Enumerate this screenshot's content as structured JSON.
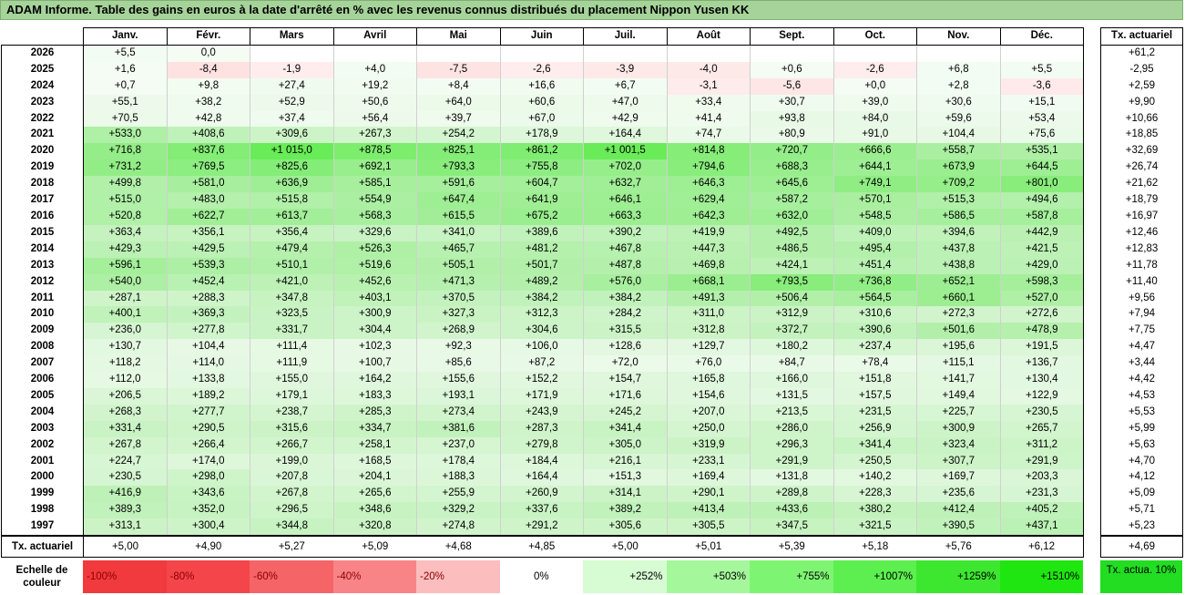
{
  "title": "ADAM Informe. Table des gains en euros à la date d'arrêté en % avec les revenus connus distribués du placement Nippon Yusen KK",
  "months": [
    "Janv.",
    "Févr.",
    "Mars",
    "Avril",
    "Mai",
    "Juin",
    "Juil.",
    "Août",
    "Sept.",
    "Oct.",
    "Nov.",
    "Déc."
  ],
  "side_header": "Tx. actuariel",
  "footer_label": "Tx. actuariel",
  "rows": [
    {
      "year": "2026",
      "v": [
        "+5,5",
        "0,0",
        "",
        "",
        "",
        "",
        "",
        "",
        "",
        "",
        "",
        ""
      ],
      "tx": "+61,2"
    },
    {
      "year": "2025",
      "v": [
        "+1,6",
        "-8,4",
        "-1,9",
        "+4,0",
        "-7,5",
        "-2,6",
        "-3,9",
        "-4,0",
        "+0,6",
        "-2,6",
        "+6,8",
        "+5,5"
      ],
      "tx": "-2,95"
    },
    {
      "year": "2024",
      "v": [
        "+0,7",
        "+9,8",
        "+27,4",
        "+19,2",
        "+8,4",
        "+16,6",
        "+6,7",
        "-3,1",
        "-5,6",
        "+0,0",
        "+2,8",
        "-3,6"
      ],
      "tx": "+2,59"
    },
    {
      "year": "2023",
      "v": [
        "+55,1",
        "+38,2",
        "+52,9",
        "+50,6",
        "+64,0",
        "+60,6",
        "+47,0",
        "+33,4",
        "+30,7",
        "+39,0",
        "+30,6",
        "+15,1"
      ],
      "tx": "+9,90"
    },
    {
      "year": "2022",
      "v": [
        "+70,5",
        "+42,8",
        "+37,4",
        "+56,4",
        "+39,7",
        "+67,0",
        "+42,9",
        "+41,4",
        "+93,8",
        "+84,0",
        "+59,6",
        "+53,4"
      ],
      "tx": "+10,66"
    },
    {
      "year": "2021",
      "v": [
        "+533,0",
        "+408,6",
        "+309,6",
        "+267,3",
        "+254,2",
        "+178,9",
        "+164,4",
        "+74,7",
        "+80,9",
        "+91,0",
        "+104,4",
        "+75,6"
      ],
      "tx": "+18,85"
    },
    {
      "year": "2020",
      "v": [
        "+716,8",
        "+837,6",
        "+1 015,0",
        "+878,5",
        "+825,1",
        "+861,2",
        "+1 001,5",
        "+814,8",
        "+720,7",
        "+666,6",
        "+558,7",
        "+535,1"
      ],
      "tx": "+32,69"
    },
    {
      "year": "2019",
      "v": [
        "+731,2",
        "+769,5",
        "+825,6",
        "+692,1",
        "+793,3",
        "+755,8",
        "+702,0",
        "+794,6",
        "+688,3",
        "+644,1",
        "+673,9",
        "+644,5"
      ],
      "tx": "+26,74"
    },
    {
      "year": "2018",
      "v": [
        "+499,8",
        "+581,0",
        "+636,9",
        "+585,1",
        "+591,6",
        "+604,7",
        "+632,7",
        "+646,3",
        "+645,6",
        "+749,1",
        "+709,2",
        "+801,0"
      ],
      "tx": "+21,62"
    },
    {
      "year": "2017",
      "v": [
        "+515,0",
        "+483,0",
        "+515,8",
        "+554,9",
        "+647,4",
        "+641,9",
        "+646,1",
        "+629,4",
        "+587,2",
        "+570,1",
        "+515,3",
        "+494,6"
      ],
      "tx": "+18,79"
    },
    {
      "year": "2016",
      "v": [
        "+520,8",
        "+622,7",
        "+613,7",
        "+568,3",
        "+615,5",
        "+675,2",
        "+663,3",
        "+642,3",
        "+632,0",
        "+548,5",
        "+586,5",
        "+587,8"
      ],
      "tx": "+16,97"
    },
    {
      "year": "2015",
      "v": [
        "+363,4",
        "+356,1",
        "+356,4",
        "+329,6",
        "+341,0",
        "+389,6",
        "+390,2",
        "+419,9",
        "+492,5",
        "+409,0",
        "+394,6",
        "+442,9"
      ],
      "tx": "+12,46"
    },
    {
      "year": "2014",
      "v": [
        "+429,3",
        "+429,5",
        "+479,4",
        "+526,3",
        "+465,7",
        "+481,2",
        "+467,8",
        "+447,3",
        "+486,5",
        "+495,4",
        "+437,8",
        "+421,5"
      ],
      "tx": "+12,83"
    },
    {
      "year": "2013",
      "v": [
        "+596,1",
        "+539,3",
        "+510,1",
        "+519,6",
        "+505,1",
        "+501,7",
        "+487,8",
        "+469,8",
        "+424,1",
        "+451,4",
        "+438,8",
        "+429,0"
      ],
      "tx": "+11,78"
    },
    {
      "year": "2012",
      "v": [
        "+540,0",
        "+452,4",
        "+421,0",
        "+452,6",
        "+471,3",
        "+489,2",
        "+576,0",
        "+668,1",
        "+793,5",
        "+736,8",
        "+652,1",
        "+598,3"
      ],
      "tx": "+11,40"
    },
    {
      "year": "2011",
      "v": [
        "+287,1",
        "+288,3",
        "+347,8",
        "+403,1",
        "+370,5",
        "+384,2",
        "+384,2",
        "+491,3",
        "+506,4",
        "+564,5",
        "+660,1",
        "+527,0"
      ],
      "tx": "+9,56"
    },
    {
      "year": "2010",
      "v": [
        "+400,1",
        "+369,3",
        "+323,5",
        "+300,9",
        "+327,3",
        "+312,3",
        "+284,2",
        "+311,0",
        "+312,9",
        "+310,6",
        "+272,3",
        "+272,6"
      ],
      "tx": "+7,94"
    },
    {
      "year": "2009",
      "v": [
        "+236,0",
        "+277,8",
        "+331,7",
        "+304,4",
        "+268,9",
        "+304,6",
        "+315,5",
        "+312,8",
        "+372,7",
        "+390,6",
        "+501,6",
        "+478,9"
      ],
      "tx": "+7,75"
    },
    {
      "year": "2008",
      "v": [
        "+130,7",
        "+104,4",
        "+111,4",
        "+102,3",
        "+92,3",
        "+106,0",
        "+128,6",
        "+129,7",
        "+180,2",
        "+237,4",
        "+195,6",
        "+191,5"
      ],
      "tx": "+4,47"
    },
    {
      "year": "2007",
      "v": [
        "+118,2",
        "+114,0",
        "+111,9",
        "+100,7",
        "+85,6",
        "+87,2",
        "+72,0",
        "+76,0",
        "+84,7",
        "+78,4",
        "+115,1",
        "+136,7"
      ],
      "tx": "+3,44"
    },
    {
      "year": "2006",
      "v": [
        "+112,0",
        "+133,8",
        "+155,0",
        "+164,2",
        "+155,6",
        "+152,2",
        "+154,7",
        "+165,8",
        "+166,0",
        "+151,8",
        "+141,7",
        "+130,4"
      ],
      "tx": "+4,42"
    },
    {
      "year": "2005",
      "v": [
        "+206,5",
        "+189,2",
        "+179,1",
        "+183,3",
        "+193,1",
        "+171,9",
        "+171,6",
        "+154,6",
        "+131,5",
        "+157,5",
        "+149,4",
        "+122,9"
      ],
      "tx": "+4,53"
    },
    {
      "year": "2004",
      "v": [
        "+268,3",
        "+277,7",
        "+238,7",
        "+285,3",
        "+273,4",
        "+243,9",
        "+245,2",
        "+207,0",
        "+213,5",
        "+231,5",
        "+225,7",
        "+230,5"
      ],
      "tx": "+5,53"
    },
    {
      "year": "2003",
      "v": [
        "+331,4",
        "+290,5",
        "+315,6",
        "+334,7",
        "+381,6",
        "+287,3",
        "+341,4",
        "+250,0",
        "+286,0",
        "+256,9",
        "+300,9",
        "+265,7"
      ],
      "tx": "+5,99"
    },
    {
      "year": "2002",
      "v": [
        "+267,8",
        "+266,4",
        "+266,7",
        "+258,1",
        "+237,0",
        "+279,8",
        "+305,0",
        "+319,9",
        "+296,3",
        "+341,4",
        "+323,4",
        "+311,2"
      ],
      "tx": "+5,63"
    },
    {
      "year": "2001",
      "v": [
        "+224,7",
        "+174,0",
        "+199,0",
        "+168,5",
        "+178,4",
        "+184,4",
        "+216,1",
        "+233,1",
        "+291,9",
        "+250,5",
        "+307,7",
        "+291,9"
      ],
      "tx": "+4,70"
    },
    {
      "year": "2000",
      "v": [
        "+230,5",
        "+298,0",
        "+207,8",
        "+204,1",
        "+188,3",
        "+164,4",
        "+151,3",
        "+169,4",
        "+131,8",
        "+140,2",
        "+169,7",
        "+203,3"
      ],
      "tx": "+4,12"
    },
    {
      "year": "1999",
      "v": [
        "+416,9",
        "+343,6",
        "+267,8",
        "+265,6",
        "+255,9",
        "+260,9",
        "+314,1",
        "+290,1",
        "+289,8",
        "+228,3",
        "+235,6",
        "+231,3"
      ],
      "tx": "+5,09"
    },
    {
      "year": "1998",
      "v": [
        "+389,3",
        "+352,0",
        "+296,5",
        "+348,6",
        "+329,2",
        "+337,6",
        "+389,2",
        "+413,4",
        "+433,6",
        "+380,2",
        "+412,4",
        "+405,2"
      ],
      "tx": "+5,71"
    },
    {
      "year": "1997",
      "v": [
        "+313,1",
        "+300,4",
        "+344,8",
        "+320,8",
        "+274,8",
        "+291,2",
        "+305,6",
        "+305,5",
        "+347,5",
        "+321,5",
        "+390,5",
        "+437,1"
      ],
      "tx": "+5,23"
    }
  ],
  "footer": [
    "+5,00",
    "+4,90",
    "+5,27",
    "+5,09",
    "+4,68",
    "+4,85",
    "+5,00",
    "+5,01",
    "+5,39",
    "+5,18",
    "+5,76",
    "+6,12"
  ],
  "footer_tx": "+4,69",
  "legend": {
    "label": "Echelle de couleur",
    "items": [
      {
        "text": "-100%",
        "color": "#f13a3d",
        "align": "left"
      },
      {
        "text": "-80%",
        "color": "#f3454a",
        "align": "left"
      },
      {
        "text": "-60%",
        "color": "#f56467",
        "align": "left"
      },
      {
        "text": "-40%",
        "color": "#f88487",
        "align": "left"
      },
      {
        "text": "-20%",
        "color": "#fbbdbe",
        "align": "left"
      },
      {
        "text": "0%",
        "color": "#ffffff",
        "align": "center"
      },
      {
        "text": "+252%",
        "color": "#d7fbd3",
        "align": "right"
      },
      {
        "text": "+503%",
        "color": "#a5f79c",
        "align": "right"
      },
      {
        "text": "+755%",
        "color": "#7ef572",
        "align": "right"
      },
      {
        "text": "+1007%",
        "color": "#5cef4f",
        "align": "right"
      },
      {
        "text": "+1259%",
        "color": "#3de72f",
        "align": "right"
      },
      {
        "text": "+1510%",
        "color": "#1fe610",
        "align": "right"
      }
    ],
    "side": "Tx. actua. 10%",
    "side_color": "#22dd22"
  }
}
